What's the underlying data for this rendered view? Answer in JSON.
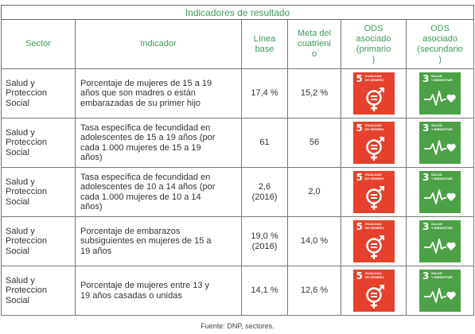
{
  "table": {
    "caption": "Indicadores de resultado",
    "headers": {
      "sector": "Sector",
      "indicator": "Indicador",
      "baseline": [
        "Línea",
        "base"
      ],
      "goal": [
        "Meta del",
        "cuatrieni",
        "o"
      ],
      "ods_primary": [
        "ODS",
        "asociado",
        "(primario",
        ")"
      ],
      "ods_secondary": [
        "ODS",
        "asociado",
        "(secundario",
        ")"
      ]
    },
    "rows": [
      {
        "sector": [
          "Salud y",
          "Proteccion",
          "Social"
        ],
        "indicator": [
          "Porcentaje de mujeres de 15 a 19",
          "años que son madres o están",
          "embarazadas de su primer hijo"
        ],
        "baseline": [
          "17,4 %"
        ],
        "goal": "15,2 %"
      },
      {
        "sector": [
          "Salud y",
          "Proteccion",
          "Social"
        ],
        "indicator": [
          "Tasa específica de fecundidad en",
          "adolescentes de 15 a 19 años (por",
          "cada 1.000 mujeres de 15 a 19",
          "años)"
        ],
        "baseline": [
          "61"
        ],
        "goal": "56"
      },
      {
        "sector": [
          "Salud y",
          "Proteccion",
          "Social"
        ],
        "indicator": [
          "Tasa específica de fecundidad en",
          "adolescentes de 10 a 14 años (por",
          "cada 1.000 mujeres de 10 a 14",
          "años)"
        ],
        "baseline": [
          "2,6",
          "(2016)"
        ],
        "goal": "2,0"
      },
      {
        "sector": [
          "Salud y",
          "Proteccion",
          "Social"
        ],
        "indicator": [
          "Porcentaje de embarazos",
          "subsiguientes en mujeres de 15 a",
          "19 años"
        ],
        "baseline": [
          "19,0 %",
          "(2016)"
        ],
        "goal": "14,0 %"
      },
      {
        "sector": [
          "Salud y",
          "Proteccion",
          "Social"
        ],
        "indicator": [
          "Porcentaje de mujeres entre 13 y",
          "19 años casadas o unidas"
        ],
        "baseline": [
          "14,1 %"
        ],
        "goal": "12,6 %"
      }
    ],
    "ods_primary_badge": {
      "number": "5",
      "label": [
        "IGUALDAD",
        "DE GÉNERO"
      ],
      "color": "#e5412c",
      "icon": "gender-equality-icon"
    },
    "ods_secondary_badge": {
      "number": "3",
      "label": [
        "SALUD",
        "Y BIENESTAR"
      ],
      "color": "#4ca146",
      "icon": "heartbeat-icon"
    }
  },
  "source": "Fuente: DNP, sectores."
}
